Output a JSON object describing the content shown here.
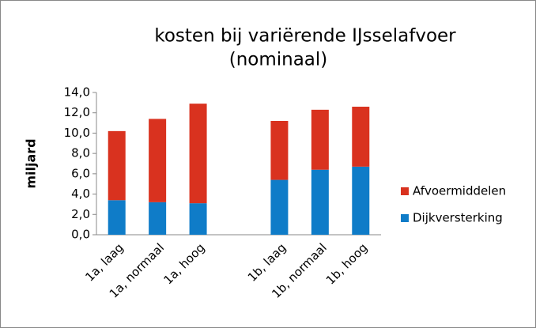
{
  "chart_data": {
    "type": "stacked-bar",
    "title": [
      "kosten bij variërende IJsselafvoer",
      "(nominaal)"
    ],
    "y_label": "miljard",
    "categories": [
      "1a, laag",
      "1a, normaal",
      "1a, hoog",
      null,
      "1b, laag",
      "1b, normaal",
      "1b, hoog"
    ],
    "series": [
      {
        "name": "Dijkversterking",
        "color": "#0f7cc8",
        "values": [
          3.4,
          3.2,
          3.1,
          null,
          5.4,
          6.4,
          6.7
        ]
      },
      {
        "name": "Afvoermiddelen",
        "color": "#d9321f",
        "values": [
          6.8,
          8.2,
          9.8,
          null,
          5.8,
          5.9,
          5.9
        ]
      }
    ],
    "ylim": [
      0,
      14
    ],
    "yticks": [
      {
        "value": 0,
        "label": "0,0"
      },
      {
        "value": 2,
        "label": "2,0"
      },
      {
        "value": 4,
        "label": "4,0"
      },
      {
        "value": 6,
        "label": "6,0"
      },
      {
        "value": 8,
        "label": "8,0"
      },
      {
        "value": 10,
        "label": "10,0"
      },
      {
        "value": 12,
        "label": "12,0"
      },
      {
        "value": 14,
        "label": "14,0"
      }
    ],
    "legend": "right"
  }
}
